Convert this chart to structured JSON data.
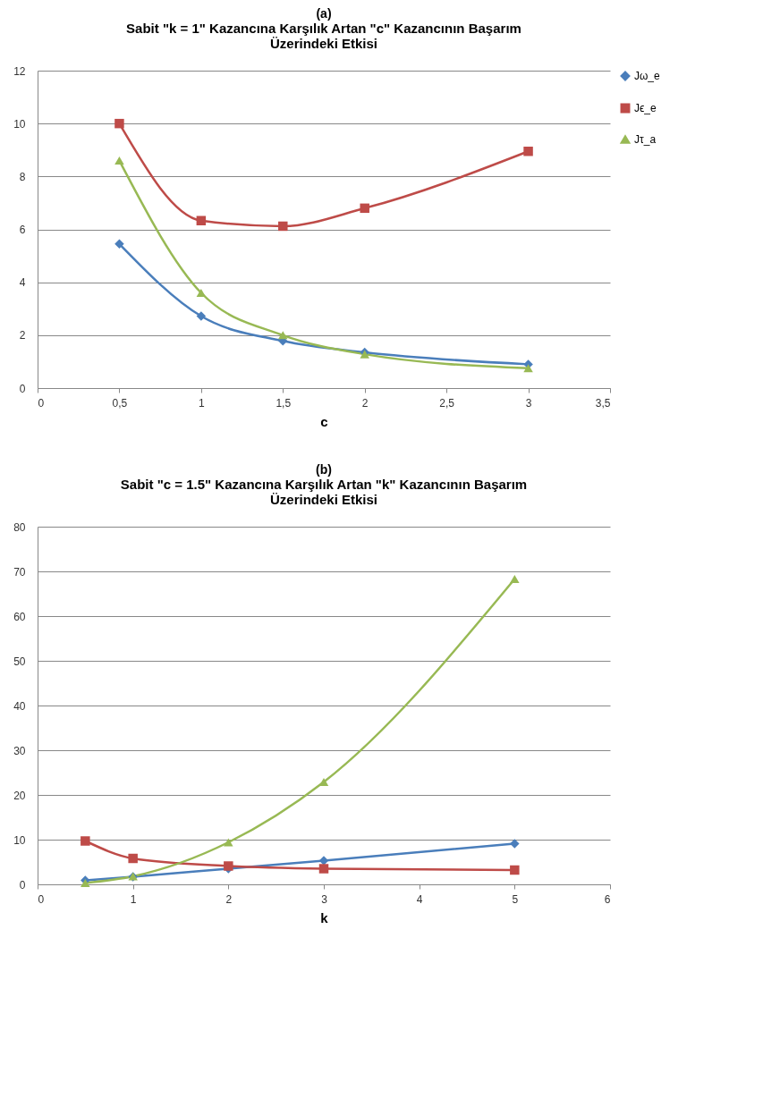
{
  "chart_data": [
    {
      "type": "line",
      "title": "(a)",
      "subtitle": "Sabit \"k = 1\" Kazancına Karşılık Artan \"c\" Kazancının Başarım Üzerindeki Etkisi",
      "xlabel": "c",
      "x": [
        0.5,
        1,
        1.5,
        2,
        3
      ],
      "series": [
        {
          "name": "Jω_e",
          "color": "#4a7ebb",
          "marker": "diamond",
          "values": [
            5.45,
            2.72,
            1.78,
            1.35,
            0.9
          ]
        },
        {
          "name": "Jϵ_e",
          "color": "#be4b48",
          "marker": "square",
          "values": [
            10,
            6.33,
            6.12,
            6.8,
            8.95
          ]
        },
        {
          "name": "Jτ_a",
          "color": "#98b954",
          "marker": "triangle",
          "values": [
            8.6,
            3.6,
            2.0,
            1.28,
            0.75
          ]
        }
      ],
      "xlim": [
        0,
        3.5
      ],
      "xticks": [
        0,
        {
          "value": 0.5,
          "label": "0,5"
        },
        1,
        {
          "value": 1.5,
          "label": "1,5"
        },
        2,
        {
          "value": 2.5,
          "label": "2,5"
        },
        3,
        {
          "value": 3.5,
          "label": "3,5"
        }
      ],
      "ylim": [
        0,
        12
      ],
      "yticks": [
        0,
        2,
        4,
        6,
        8,
        10,
        12
      ],
      "grid": "y",
      "legend": "right"
    },
    {
      "type": "line",
      "title": "(b)",
      "subtitle": "Sabit \"c = 1.5\" Kazancına Karşılık Artan \"k\" Kazancının Başarım Üzerindeki Etkisi",
      "xlabel": "k",
      "x": [
        0.5,
        1,
        2,
        3,
        5
      ],
      "series": [
        {
          "name": "Jω_e",
          "color": "#4a7ebb",
          "marker": "diamond",
          "values": [
            0.9,
            1.7,
            3.5,
            5.3,
            9.1
          ]
        },
        {
          "name": "Jϵ_e",
          "color": "#be4b48",
          "marker": "square",
          "values": [
            9.7,
            5.8,
            4.1,
            3.5,
            3.2
          ]
        },
        {
          "name": "Jτ_a",
          "color": "#98b954",
          "marker": "triangle",
          "values": [
            0.3,
            1.8,
            9.4,
            22.9,
            68.3
          ]
        }
      ],
      "xlim": [
        0,
        6
      ],
      "xticks": [
        0,
        1,
        2,
        3,
        4,
        5,
        6
      ],
      "ylim": [
        0,
        80
      ],
      "yticks": [
        0,
        10,
        20,
        30,
        40,
        50,
        60,
        70,
        80
      ],
      "grid": "y",
      "legend": "right"
    }
  ]
}
